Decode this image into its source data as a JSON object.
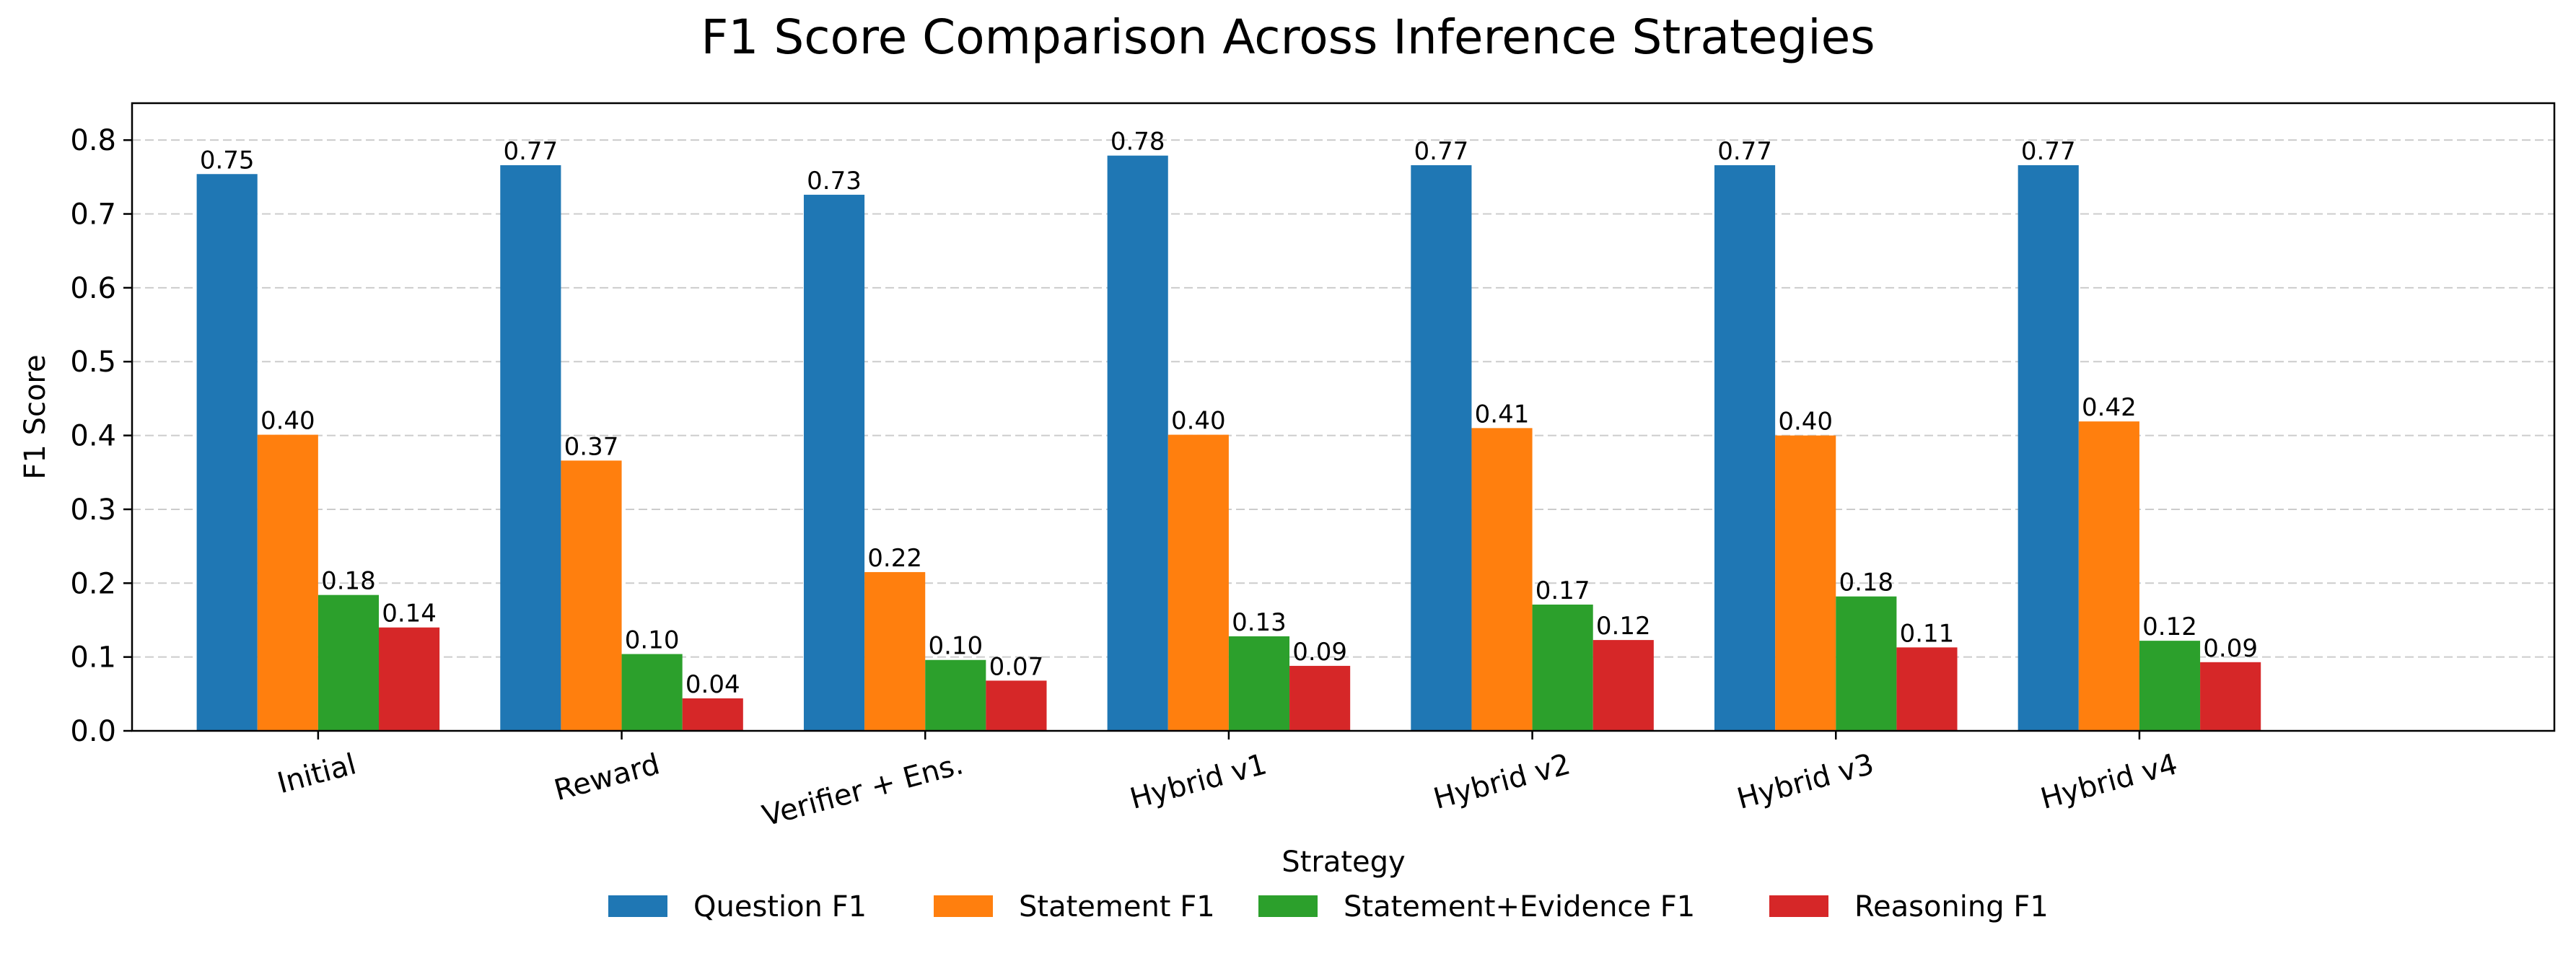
{
  "chart_data": {
    "type": "bar",
    "title": "F1 Score Comparison Across Inference Strategies",
    "xlabel": "Strategy",
    "ylabel": "F1 Score",
    "ylim": [
      0,
      0.85
    ],
    "yticks": [
      "0.0",
      "0.1",
      "0.2",
      "0.3",
      "0.4",
      "0.5",
      "0.6",
      "0.7",
      "0.8"
    ],
    "grid": "y-dashed",
    "legend_position": "bottom",
    "categories": [
      "Initial",
      "Reward",
      "Verifier + Ens.",
      "Hybrid v1",
      "Hybrid v2",
      "Hybrid v3",
      "Hybrid v4"
    ],
    "series": [
      {
        "name": "Question F1",
        "color": "#1f77b4",
        "values": [
          0.754,
          0.766,
          0.726,
          0.779,
          0.766,
          0.766,
          0.766
        ],
        "labels": [
          "0.75",
          "0.77",
          "0.73",
          "0.78",
          "0.77",
          "0.77",
          "0.77"
        ]
      },
      {
        "name": "Statement F1",
        "color": "#ff7f0e",
        "values": [
          0.401,
          0.366,
          0.215,
          0.401,
          0.41,
          0.4,
          0.419
        ],
        "labels": [
          "0.40",
          "0.37",
          "0.22",
          "0.40",
          "0.41",
          "0.40",
          "0.42"
        ]
      },
      {
        "name": "Statement+Evidence F1",
        "color": "#2ca02c",
        "values": [
          0.184,
          0.104,
          0.096,
          0.128,
          0.171,
          0.182,
          0.122
        ],
        "labels": [
          "0.18",
          "0.10",
          "0.10",
          "0.13",
          "0.17",
          "0.18",
          "0.12"
        ]
      },
      {
        "name": "Reasoning F1",
        "color": "#d62728",
        "values": [
          0.14,
          0.044,
          0.068,
          0.088,
          0.123,
          0.113,
          0.093
        ],
        "labels": [
          "0.14",
          "0.04",
          "0.07",
          "0.09",
          "0.12",
          "0.11",
          "0.09"
        ]
      }
    ]
  }
}
